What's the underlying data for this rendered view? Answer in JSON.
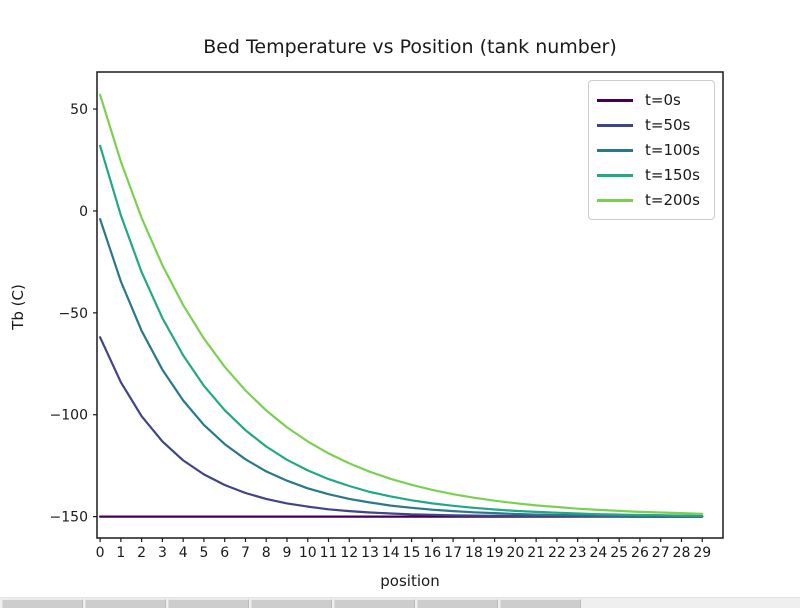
{
  "window": {
    "background": "#ffffff",
    "toolbar": {
      "button_count": 7,
      "button_width": 79,
      "button_gap": 4
    }
  },
  "chart_data": {
    "type": "line",
    "title": "Bed Temperature vs Position (tank number)",
    "xlabel": "position",
    "ylabel": "Tb (C)",
    "x": [
      0,
      1,
      2,
      3,
      4,
      5,
      6,
      7,
      8,
      9,
      10,
      11,
      12,
      13,
      14,
      15,
      16,
      17,
      18,
      19,
      20,
      21,
      22,
      23,
      24,
      25,
      26,
      27,
      28,
      29
    ],
    "xtick_labels": [
      "0",
      "1",
      "2",
      "3",
      "4",
      "5",
      "6",
      "7",
      "8",
      "9",
      "10",
      "11",
      "12",
      "13",
      "14",
      "15",
      "16",
      "17",
      "18",
      "19",
      "20",
      "21",
      "22",
      "23",
      "24",
      "25",
      "26",
      "27",
      "28",
      "29"
    ],
    "yticks": [
      50,
      0,
      -50,
      -100,
      -150
    ],
    "ytick_labels": [
      "50",
      "0",
      "−50",
      "−100",
      "−150"
    ],
    "xlim": [
      -0.15,
      30.0
    ],
    "ylim": [
      -160.5,
      68.2
    ],
    "grid": false,
    "legend_position": "upper right",
    "axis_color": "#1a1a1a",
    "series": [
      {
        "name": "t=0s",
        "color": "#440154",
        "values": [
          -150,
          -150,
          -150,
          -150,
          -150,
          -150,
          -150,
          -150,
          -150,
          -150,
          -150,
          -150,
          -150,
          -150,
          -150,
          -150,
          -150,
          -150,
          -150,
          -150,
          -150,
          -150,
          -150,
          -150,
          -150,
          -150,
          -150,
          -150,
          -150,
          -150
        ]
      },
      {
        "name": "t=50s",
        "color": "#414487",
        "values": [
          -62,
          -84.1,
          -100.7,
          -113.1,
          -122.4,
          -129.3,
          -134.5,
          -138.4,
          -141.3,
          -143.5,
          -145.1,
          -146.4,
          -147.3,
          -148,
          -148.5,
          -148.9,
          -149.1,
          -149.4,
          -149.5,
          -149.6,
          -149.7,
          -149.8,
          -149.8,
          -149.9,
          -149.9,
          -149.9,
          -150,
          -150,
          -150,
          -150
        ]
      },
      {
        "name": "t=100s",
        "color": "#2a788e",
        "values": [
          -4,
          -34.6,
          -58.8,
          -77.9,
          -93,
          -105,
          -114.4,
          -121.9,
          -127.8,
          -132.4,
          -136.1,
          -139,
          -141.3,
          -143.1,
          -144.6,
          -145.7,
          -146.6,
          -147.3,
          -147.9,
          -148.3,
          -148.7,
          -149,
          -149.2,
          -149.3,
          -149.5,
          -149.6,
          -149.7,
          -149.7,
          -149.8,
          -149.8
        ]
      },
      {
        "name": "t=150s",
        "color": "#22a884",
        "values": [
          32,
          -2.2,
          -30,
          -52.6,
          -70.9,
          -85.8,
          -97.8,
          -107.6,
          -115.6,
          -122.1,
          -127.3,
          -131.6,
          -135,
          -137.9,
          -140.1,
          -142,
          -143.5,
          -144.7,
          -145.7,
          -146.5,
          -147.2,
          -147.7,
          -148.1,
          -148.5,
          -148.8,
          -149,
          -149.2,
          -149.3,
          -149.5,
          -149.6
        ]
      },
      {
        "name": "t=200s",
        "color": "#7ad151",
        "values": [
          57,
          24.2,
          -3.4,
          -26.6,
          -46.2,
          -62.6,
          -76.5,
          -88.1,
          -97.9,
          -106.2,
          -113.1,
          -119,
          -123.9,
          -128,
          -131.5,
          -134.4,
          -136.9,
          -139,
          -140.7,
          -142.2,
          -143.4,
          -144.5,
          -145.3,
          -146.1,
          -146.7,
          -147.2,
          -147.7,
          -148,
          -148.3,
          -148.6
        ]
      }
    ]
  }
}
